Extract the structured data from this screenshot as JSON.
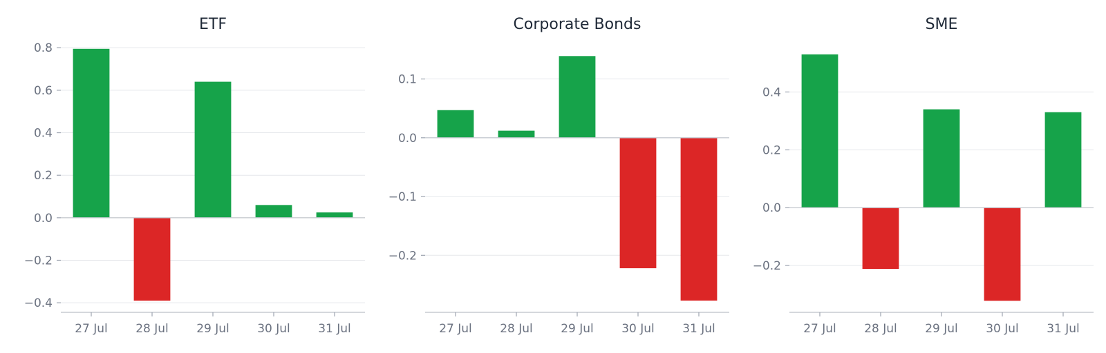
{
  "colors": {
    "positive": "#16a34a",
    "negative": "#dc2626"
  },
  "chart_data": [
    {
      "type": "bar",
      "title": "ETF",
      "categories": [
        "27 Jul",
        "28 Jul",
        "29 Jul",
        "30 Jul",
        "31 Jul"
      ],
      "values": [
        0.795,
        -0.39,
        0.64,
        0.06,
        0.025
      ],
      "ylim": [
        -0.445,
        0.83
      ],
      "yticks": [
        -0.4,
        -0.2,
        0.0,
        0.2,
        0.4,
        0.6,
        0.8
      ],
      "ytick_labels": [
        "−0.4",
        "−0.2",
        "0.0",
        "0.2",
        "0.4",
        "0.6",
        "0.8"
      ],
      "grid": true,
      "xlabel": "",
      "ylabel": ""
    },
    {
      "type": "bar",
      "title": "Corporate Bonds",
      "categories": [
        "27 Jul",
        "28 Jul",
        "29 Jul",
        "30 Jul",
        "31 Jul"
      ],
      "values": [
        0.047,
        0.012,
        0.139,
        -0.222,
        -0.277
      ],
      "ylim": [
        -0.297,
        0.164
      ],
      "yticks": [
        -0.2,
        -0.1,
        0.0,
        0.1
      ],
      "ytick_labels": [
        "−0.2",
        "−0.1",
        "0.0",
        "0.1"
      ],
      "grid": true,
      "xlabel": "",
      "ylabel": ""
    },
    {
      "type": "bar",
      "title": "SME",
      "categories": [
        "27 Jul",
        "28 Jul",
        "29 Jul",
        "30 Jul",
        "31 Jul"
      ],
      "values": [
        0.53,
        -0.212,
        0.34,
        -0.322,
        0.33
      ],
      "ylim": [
        -0.362,
        0.575
      ],
      "yticks": [
        -0.2,
        0.0,
        0.2,
        0.4
      ],
      "ytick_labels": [
        "−0.2",
        "0.0",
        "0.2",
        "0.4"
      ],
      "grid": true,
      "xlabel": "",
      "ylabel": ""
    }
  ]
}
